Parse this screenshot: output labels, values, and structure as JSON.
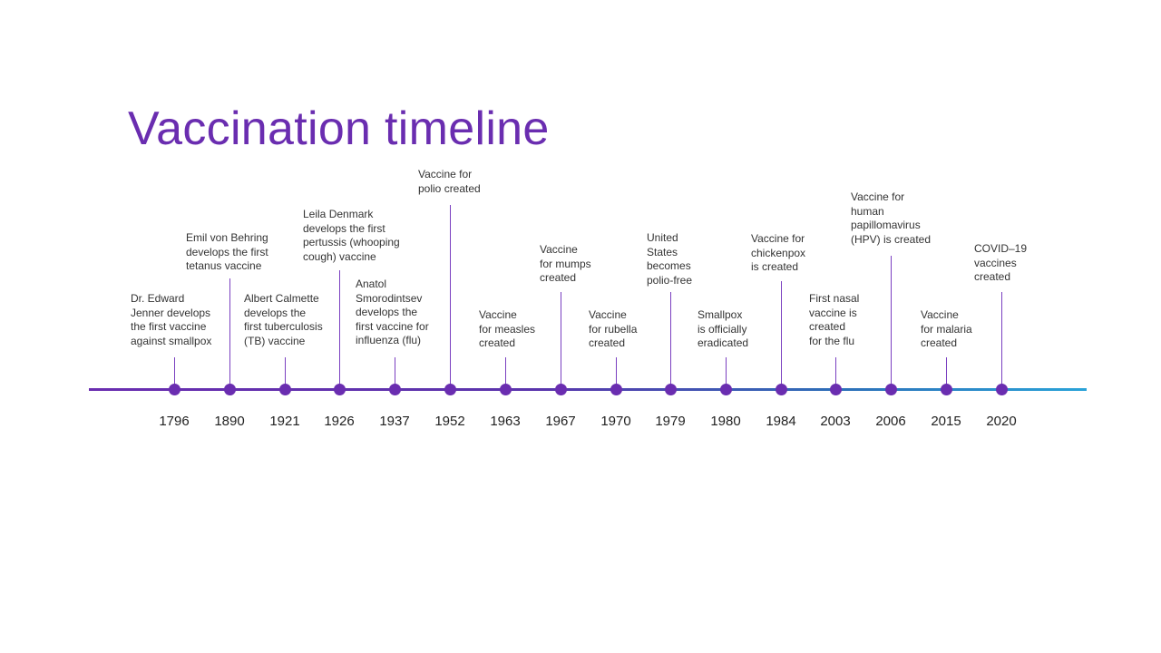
{
  "title": "Vaccination timeline",
  "colors": {
    "accent": "#6a2db0",
    "line_start": "#6a2db0",
    "line_end": "#2aa3d8"
  },
  "events": [
    {
      "year": "1796",
      "label": "Dr. Edward\nJenner develops\nthe first vaccine\nagainst smallpox"
    },
    {
      "year": "1890",
      "label": "Emil von Behring\ndevelops the first\ntetanus vaccine"
    },
    {
      "year": "1921",
      "label": "Albert Calmette\ndevelops the\nfirst tuberculosis\n(TB) vaccine"
    },
    {
      "year": "1926",
      "label": "Leila Denmark\ndevelops the first\npertussis (whooping\ncough) vaccine"
    },
    {
      "year": "1937",
      "label": "Anatol\nSmorodintsev\ndevelops the\nfirst vaccine for\ninfluenza (flu)"
    },
    {
      "year": "1952",
      "label": "Vaccine for\npolio created"
    },
    {
      "year": "1963",
      "label": "Vaccine\nfor measles\ncreated"
    },
    {
      "year": "1967",
      "label": "Vaccine\nfor mumps\ncreated"
    },
    {
      "year": "1970",
      "label": "Vaccine\nfor rubella\ncreated"
    },
    {
      "year": "1979",
      "label": "United\nStates\nbecomes\npolio-free"
    },
    {
      "year": "1980",
      "label": "Smallpox\nis officially\neradicated"
    },
    {
      "year": "1984",
      "label": "Vaccine for\nchickenpox\nis created"
    },
    {
      "year": "2003",
      "label": "First nasal\nvaccine is\ncreated\nfor the flu"
    },
    {
      "year": "2006",
      "label": "Vaccine for\nhuman\npapillomavirus\n(HPV) is created"
    },
    {
      "year": "2015",
      "label": "Vaccine\nfor malaria\ncreated"
    },
    {
      "year": "2020",
      "label": "COVID–19\nvaccines\ncreated"
    }
  ]
}
